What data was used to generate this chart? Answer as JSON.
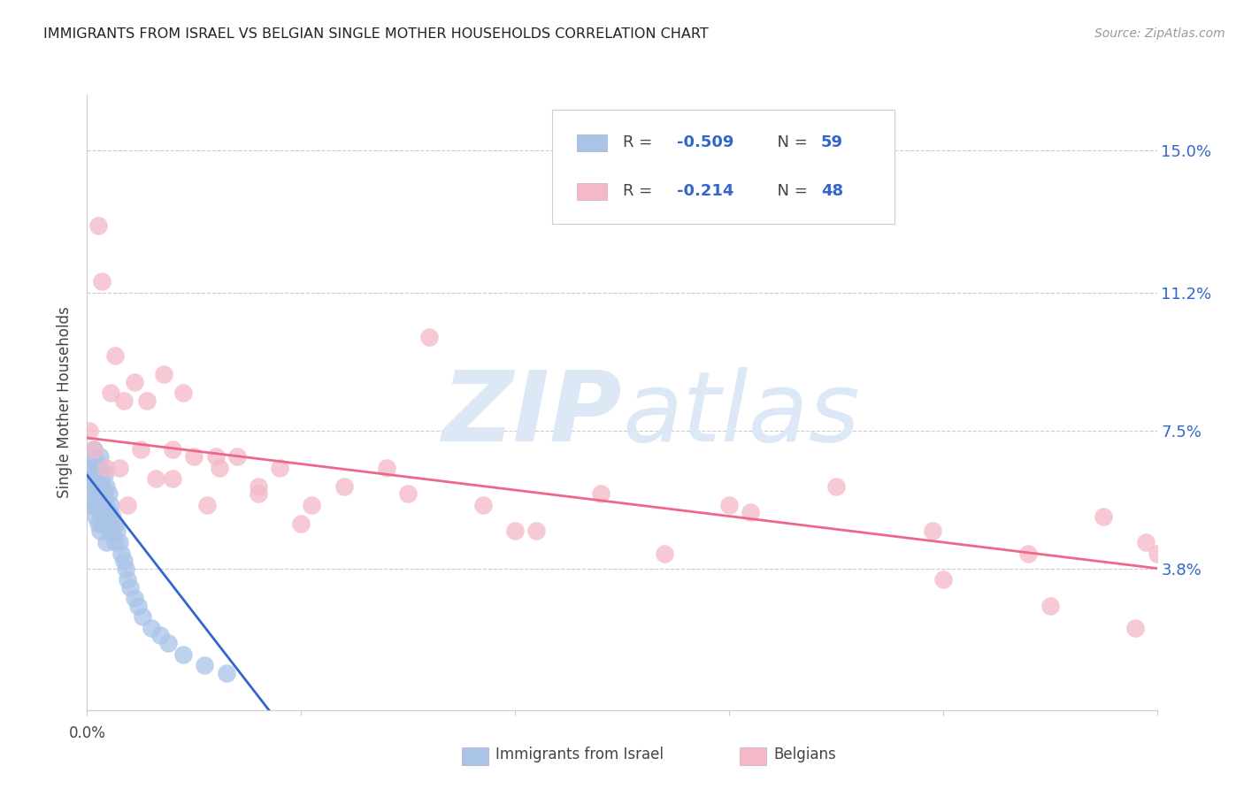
{
  "title": "IMMIGRANTS FROM ISRAEL VS BELGIAN SINGLE MOTHER HOUSEHOLDS CORRELATION CHART",
  "source": "Source: ZipAtlas.com",
  "ylabel": "Single Mother Households",
  "ytick_labels": [
    "3.8%",
    "7.5%",
    "11.2%",
    "15.0%"
  ],
  "ytick_values": [
    0.038,
    0.075,
    0.112,
    0.15
  ],
  "xlim": [
    0.0,
    0.5
  ],
  "ylim": [
    0.0,
    0.165
  ],
  "israel_color": "#aac4e8",
  "belgian_color": "#f5b8c8",
  "israel_line_color": "#3366cc",
  "belgian_line_color": "#ee6688",
  "legend_text_color": "#3366cc",
  "israel_regline_x": [
    0.0,
    0.085
  ],
  "israel_regline_y": [
    0.063,
    0.0
  ],
  "belgian_regline_x": [
    0.0,
    0.5
  ],
  "belgian_regline_y": [
    0.073,
    0.038
  ],
  "israel_scatter_x": [
    0.001,
    0.001,
    0.001,
    0.002,
    0.002,
    0.002,
    0.003,
    0.003,
    0.003,
    0.003,
    0.004,
    0.004,
    0.004,
    0.004,
    0.005,
    0.005,
    0.005,
    0.005,
    0.006,
    0.006,
    0.006,
    0.006,
    0.006,
    0.007,
    0.007,
    0.007,
    0.007,
    0.008,
    0.008,
    0.008,
    0.009,
    0.009,
    0.009,
    0.009,
    0.01,
    0.01,
    0.01,
    0.011,
    0.011,
    0.012,
    0.012,
    0.013,
    0.013,
    0.014,
    0.015,
    0.016,
    0.017,
    0.018,
    0.019,
    0.02,
    0.022,
    0.024,
    0.026,
    0.03,
    0.034,
    0.038,
    0.045,
    0.055,
    0.065
  ],
  "israel_scatter_y": [
    0.065,
    0.06,
    0.055,
    0.068,
    0.062,
    0.056,
    0.07,
    0.065,
    0.06,
    0.055,
    0.067,
    0.062,
    0.057,
    0.052,
    0.065,
    0.06,
    0.055,
    0.05,
    0.068,
    0.063,
    0.058,
    0.053,
    0.048,
    0.065,
    0.06,
    0.055,
    0.05,
    0.063,
    0.058,
    0.053,
    0.06,
    0.055,
    0.05,
    0.045,
    0.058,
    0.053,
    0.048,
    0.055,
    0.05,
    0.052,
    0.047,
    0.05,
    0.045,
    0.048,
    0.045,
    0.042,
    0.04,
    0.038,
    0.035,
    0.033,
    0.03,
    0.028,
    0.025,
    0.022,
    0.02,
    0.018,
    0.015,
    0.012,
    0.01
  ],
  "belgian_scatter_x": [
    0.001,
    0.003,
    0.005,
    0.007,
    0.009,
    0.011,
    0.013,
    0.015,
    0.017,
    0.019,
    0.022,
    0.025,
    0.028,
    0.032,
    0.036,
    0.04,
    0.045,
    0.05,
    0.056,
    0.062,
    0.07,
    0.08,
    0.09,
    0.105,
    0.12,
    0.14,
    0.16,
    0.185,
    0.21,
    0.24,
    0.27,
    0.31,
    0.35,
    0.395,
    0.44,
    0.475,
    0.495,
    0.5,
    0.04,
    0.06,
    0.08,
    0.1,
    0.15,
    0.2,
    0.3,
    0.4,
    0.45,
    0.49
  ],
  "belgian_scatter_y": [
    0.075,
    0.07,
    0.13,
    0.115,
    0.065,
    0.085,
    0.095,
    0.065,
    0.083,
    0.055,
    0.088,
    0.07,
    0.083,
    0.062,
    0.09,
    0.07,
    0.085,
    0.068,
    0.055,
    0.065,
    0.068,
    0.06,
    0.065,
    0.055,
    0.06,
    0.065,
    0.1,
    0.055,
    0.048,
    0.058,
    0.042,
    0.053,
    0.06,
    0.048,
    0.042,
    0.052,
    0.045,
    0.042,
    0.062,
    0.068,
    0.058,
    0.05,
    0.058,
    0.048,
    0.055,
    0.035,
    0.028,
    0.022
  ]
}
